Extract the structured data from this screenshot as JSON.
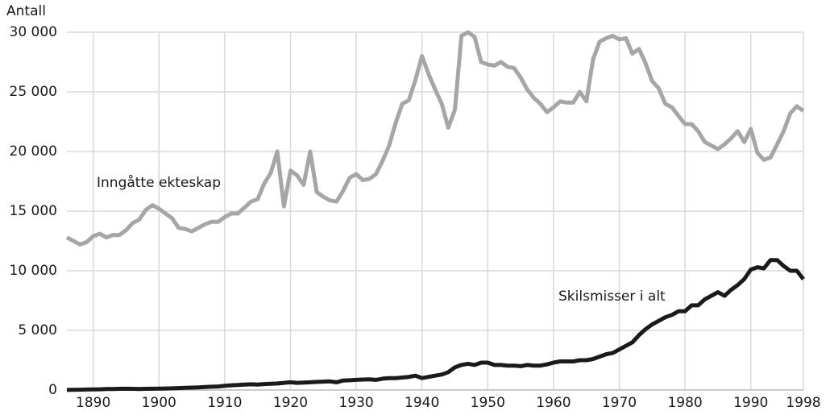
{
  "chart_data": {
    "type": "line",
    "y_label": "Antall",
    "x": [
      1886,
      1887,
      1888,
      1889,
      1890,
      1891,
      1892,
      1893,
      1894,
      1895,
      1896,
      1897,
      1898,
      1899,
      1900,
      1901,
      1902,
      1903,
      1904,
      1905,
      1906,
      1907,
      1908,
      1909,
      1910,
      1911,
      1912,
      1913,
      1914,
      1915,
      1916,
      1917,
      1918,
      1919,
      1920,
      1921,
      1922,
      1923,
      1924,
      1925,
      1926,
      1927,
      1928,
      1929,
      1930,
      1931,
      1932,
      1933,
      1934,
      1935,
      1936,
      1937,
      1938,
      1939,
      1940,
      1941,
      1942,
      1943,
      1944,
      1945,
      1946,
      1947,
      1948,
      1949,
      1950,
      1951,
      1952,
      1953,
      1954,
      1955,
      1956,
      1957,
      1958,
      1959,
      1960,
      1961,
      1962,
      1963,
      1964,
      1965,
      1966,
      1967,
      1968,
      1969,
      1970,
      1971,
      1972,
      1973,
      1974,
      1975,
      1976,
      1977,
      1978,
      1979,
      1980,
      1981,
      1982,
      1983,
      1984,
      1985,
      1986,
      1987,
      1988,
      1989,
      1990,
      1991,
      1992,
      1993,
      1994,
      1995,
      1996,
      1997,
      1998
    ],
    "series": [
      {
        "name": "Inngåtte ekteskap",
        "color": "#a6a6a6",
        "values": [
          12800,
          12500,
          12200,
          12400,
          12900,
          13100,
          12800,
          13000,
          13000,
          13400,
          14000,
          14300,
          15100,
          15500,
          15200,
          14800,
          14400,
          13600,
          13500,
          13300,
          13600,
          13900,
          14100,
          14100,
          14500,
          14800,
          14800,
          15300,
          15800,
          16000,
          17300,
          18200,
          20000,
          15400,
          18400,
          18000,
          17200,
          20000,
          16600,
          16200,
          15900,
          15800,
          16700,
          17800,
          18100,
          17600,
          17700,
          18100,
          19200,
          20500,
          22400,
          24000,
          24300,
          26000,
          28000,
          26500,
          25200,
          24000,
          22000,
          23500,
          29700,
          30000,
          29600,
          27500,
          27300,
          27200,
          27500,
          27100,
          27000,
          26200,
          25200,
          24500,
          24000,
          23300,
          23700,
          24200,
          24100,
          24100,
          25000,
          24200,
          27700,
          29200,
          29500,
          29700,
          29400,
          29500,
          28200,
          28600,
          27400,
          25900,
          25300,
          24000,
          23700,
          23000,
          22300,
          22300,
          21700,
          20800,
          20500,
          20200,
          20600,
          21100,
          21700,
          20800,
          21900,
          19900,
          19300,
          19500,
          20600,
          21700,
          23200,
          23800,
          23400
        ]
      },
      {
        "name": "Skilsmisser i alt",
        "color": "#1a1a1a",
        "values": [
          10,
          20,
          30,
          40,
          50,
          60,
          80,
          90,
          100,
          110,
          100,
          90,
          100,
          110,
          120,
          130,
          140,
          160,
          180,
          200,
          220,
          250,
          280,
          300,
          350,
          400,
          420,
          450,
          480,
          450,
          500,
          520,
          550,
          600,
          650,
          600,
          620,
          650,
          680,
          700,
          720,
          650,
          800,
          820,
          850,
          880,
          900,
          850,
          950,
          1000,
          1000,
          1050,
          1100,
          1200,
          1000,
          1100,
          1200,
          1300,
          1500,
          1900,
          2100,
          2200,
          2100,
          2300,
          2300,
          2100,
          2100,
          2050,
          2050,
          2000,
          2100,
          2050,
          2050,
          2150,
          2300,
          2400,
          2400,
          2400,
          2500,
          2500,
          2600,
          2800,
          3000,
          3100,
          3400,
          3700,
          4000,
          4600,
          5100,
          5500,
          5800,
          6100,
          6300,
          6600,
          6600,
          7100,
          7100,
          7600,
          7900,
          8200,
          7900,
          8400,
          8800,
          9300,
          10100,
          10300,
          10200,
          10900,
          10900,
          10400,
          10000,
          10000,
          9300
        ]
      }
    ],
    "xlim": [
      1886,
      1998
    ],
    "xticks": [
      1890,
      1900,
      1910,
      1920,
      1930,
      1940,
      1950,
      1960,
      1970,
      1980,
      1990,
      1998
    ],
    "ylim": [
      0,
      30000
    ],
    "yticks": [
      0,
      {
        "value": 5000,
        "label": "5 000"
      },
      {
        "value": 10000,
        "label": "10 000"
      },
      {
        "value": 15000,
        "label": "15 000"
      },
      {
        "value": 20000,
        "label": "20 000"
      },
      {
        "value": 25000,
        "label": "25 000"
      },
      {
        "value": 30000,
        "label": "30 000"
      }
    ],
    "grid": true
  }
}
